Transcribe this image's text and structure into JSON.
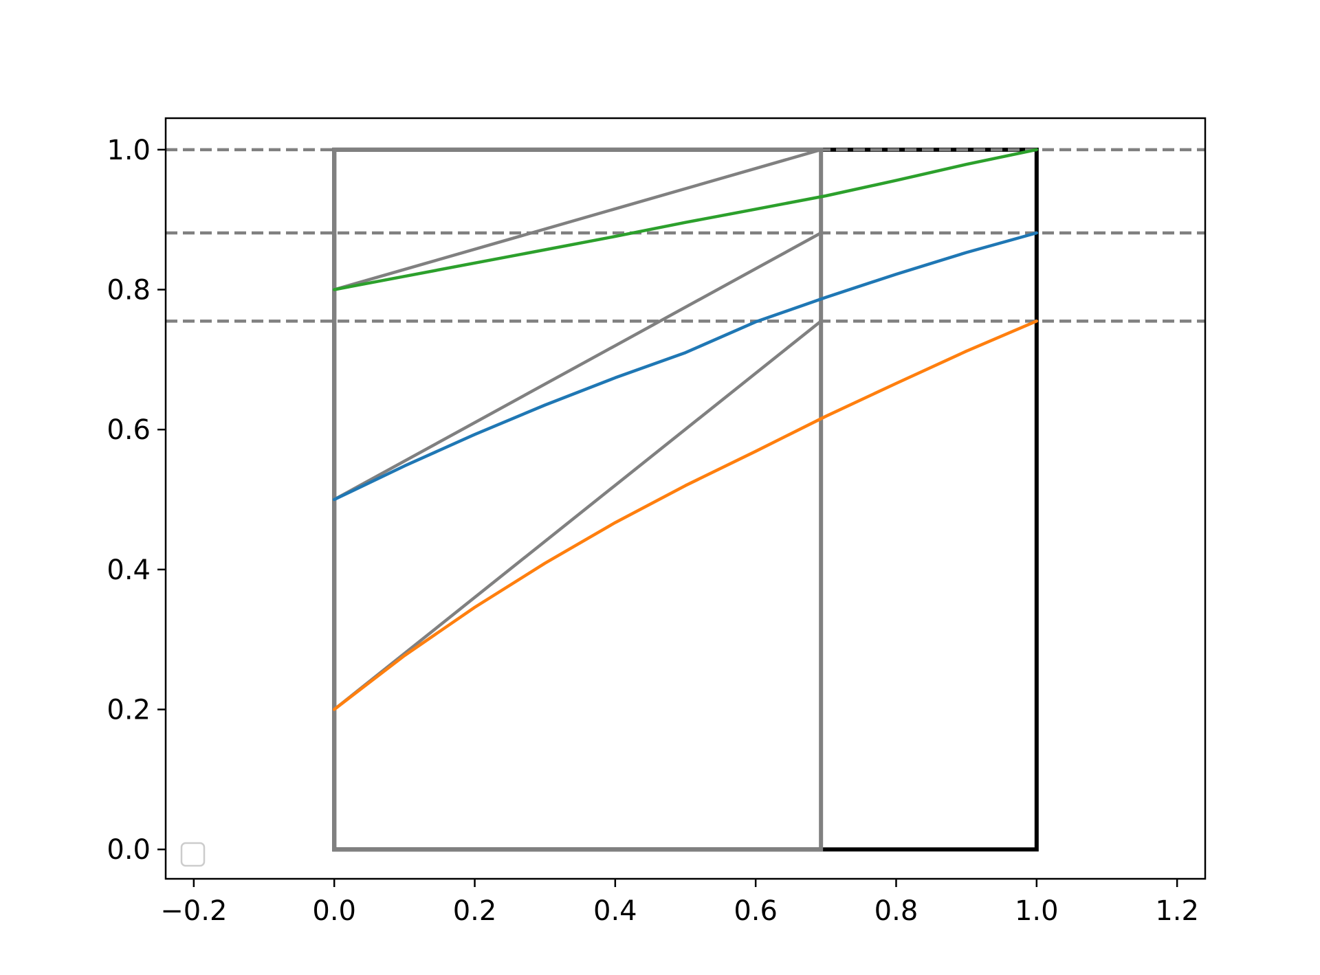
{
  "chart_data": {
    "type": "line",
    "title": "",
    "xlabel": "",
    "ylabel": "",
    "xlim": [
      -0.24,
      1.24
    ],
    "ylim": [
      -0.042,
      1.045
    ],
    "grid": false,
    "xticks": [
      {
        "value": -0.2,
        "label": "−0.2"
      },
      {
        "value": 0.0,
        "label": "0.0"
      },
      {
        "value": 0.2,
        "label": "0.2"
      },
      {
        "value": 0.4,
        "label": "0.4"
      },
      {
        "value": 0.6,
        "label": "0.6"
      },
      {
        "value": 0.8,
        "label": "0.8"
      },
      {
        "value": 1.0,
        "label": "1.0"
      },
      {
        "value": 1.2,
        "label": "1.2"
      }
    ],
    "yticks": [
      {
        "value": 0.0,
        "label": "0.0"
      },
      {
        "value": 0.2,
        "label": "0.2"
      },
      {
        "value": 0.4,
        "label": "0.4"
      },
      {
        "value": 0.6,
        "label": "0.6"
      },
      {
        "value": 0.8,
        "label": "0.8"
      },
      {
        "value": 1.0,
        "label": "1.0"
      }
    ],
    "legend": {
      "location": "lower left",
      "entries": []
    },
    "rectangles": [
      {
        "name": "outer-rect",
        "x": [
          0,
          1
        ],
        "y": [
          0,
          1
        ],
        "color": "#000000"
      },
      {
        "name": "inner-rect",
        "x": [
          0,
          0.693
        ],
        "y": [
          0,
          1
        ],
        "color": "#808080"
      }
    ],
    "hlines": [
      {
        "y": 1.0,
        "color": "#808080",
        "dash": true
      },
      {
        "y": 0.881,
        "color": "#808080",
        "dash": true
      },
      {
        "y": 0.755,
        "color": "#808080",
        "dash": true
      }
    ],
    "segments": [
      {
        "x": [
          0,
          0.693
        ],
        "y": [
          0.8,
          1.0
        ],
        "color": "#808080"
      },
      {
        "x": [
          0,
          0.693
        ],
        "y": [
          0.5,
          0.881
        ],
        "color": "#808080"
      },
      {
        "x": [
          0,
          0.693
        ],
        "y": [
          0.2,
          0.755
        ],
        "color": "#808080"
      }
    ],
    "x": [
      0,
      0.1,
      0.2,
      0.3,
      0.4,
      0.5,
      0.6,
      0.7,
      0.8,
      0.9,
      1.0
    ],
    "series": [
      {
        "color": "#2ca02c",
        "values": [
          0.8,
          0.819,
          0.838,
          0.857,
          0.876,
          0.896,
          0.915,
          0.934,
          0.956,
          0.979,
          1.0
        ]
      },
      {
        "color": "#1f77b4",
        "values": [
          0.5,
          0.548,
          0.593,
          0.635,
          0.674,
          0.71,
          0.754,
          0.789,
          0.822,
          0.853,
          0.881
        ]
      },
      {
        "color": "#ff7f0e",
        "values": [
          0.2,
          0.277,
          0.346,
          0.409,
          0.467,
          0.52,
          0.569,
          0.619,
          0.666,
          0.712,
          0.755
        ]
      }
    ]
  }
}
